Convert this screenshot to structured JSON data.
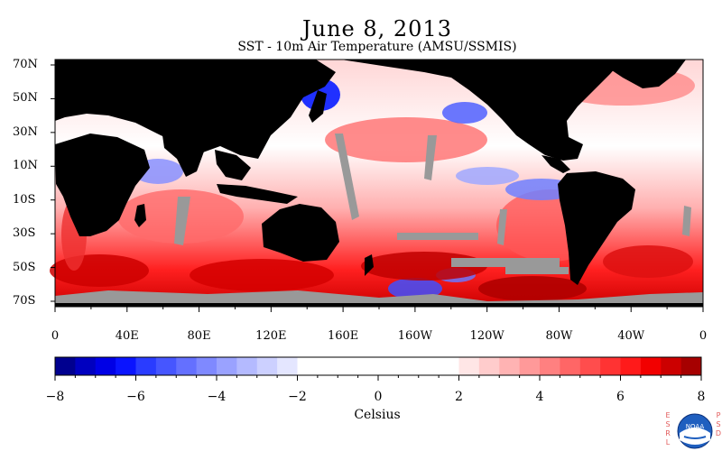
{
  "header": {
    "title": "June 8, 2013",
    "subtitle": "SST - 10m Air Temperature (AMSU/SSMIS)"
  },
  "map": {
    "lat_labels": [
      "70N",
      "50N",
      "30N",
      "10N",
      "10S",
      "30S",
      "50S",
      "70S"
    ],
    "lon_labels": [
      "0",
      "40E",
      "80E",
      "120E",
      "160E",
      "160W",
      "120W",
      "80W",
      "40W",
      "0"
    ],
    "colors": {
      "land": "#000000",
      "missing": "#999999",
      "neutral": "#ffffff"
    }
  },
  "colorbar": {
    "min": -8,
    "max": 8,
    "step": 0.5,
    "tick_labels": [
      "−8",
      "−6",
      "−4",
      "−2",
      "0",
      "2",
      "4",
      "6",
      "8"
    ],
    "units": "Celsius",
    "cold_colors": [
      "#00008f",
      "#0000c0",
      "#0000e6",
      "#0a14ff",
      "#2a3cff",
      "#4656ff",
      "#6470ff",
      "#7f89ff",
      "#9aa2ff",
      "#b4baff",
      "#ccd0ff",
      "#e4e6ff"
    ],
    "warm_colors": [
      "#ffe6e6",
      "#ffcccc",
      "#ffb3b3",
      "#ff9999",
      "#ff8080",
      "#ff6666",
      "#ff4d4d",
      "#ff3333",
      "#ff1a1a",
      "#f20000",
      "#cc0000",
      "#a60000"
    ]
  },
  "logo": {
    "left_letters": "ESRL",
    "right_letters": "PSD",
    "badge_text": "NOAA"
  }
}
